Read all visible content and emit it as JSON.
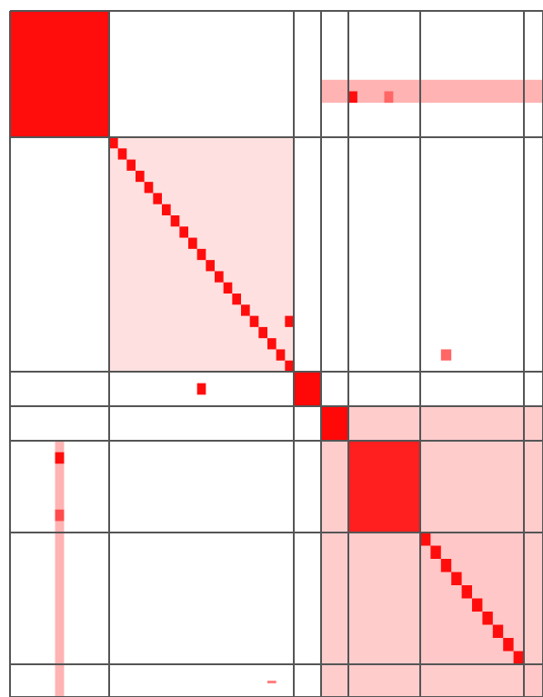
{
  "chart_data": {
    "type": "heatmap",
    "title": "",
    "xlabel": "",
    "ylabel": "",
    "colormap": [
      "#ffffff",
      "#ff0000"
    ],
    "grid_line_color": "#555555",
    "block_boundaries": [
      0,
      11,
      32,
      35,
      38,
      46,
      56,
      68,
      72
    ],
    "value_range": [
      0,
      1
    ],
    "blocks": [
      {
        "rows": [
          0,
          11
        ],
        "cols": [
          0,
          11
        ],
        "value": 0.95,
        "kind": "block"
      },
      {
        "rows": [
          11,
          32
        ],
        "cols": [
          11,
          32
        ],
        "value": 0.12,
        "kind": "block-diagonal"
      },
      {
        "rows": [
          32,
          35
        ],
        "cols": [
          32,
          35
        ],
        "value": 0.97,
        "kind": "block"
      },
      {
        "rows": [
          35,
          38
        ],
        "cols": [
          35,
          38
        ],
        "value": 0.97,
        "kind": "block"
      },
      {
        "rows": [
          38,
          46
        ],
        "cols": [
          38,
          46
        ],
        "value": 0.88,
        "kind": "block"
      },
      {
        "rows": [
          46,
          56
        ],
        "cols": [
          46,
          56
        ],
        "value": 0.22,
        "kind": "block-diagonal"
      },
      {
        "rows": [
          56,
          68
        ],
        "cols": [
          56,
          68
        ],
        "value": 0.22,
        "kind": "block"
      },
      {
        "rows": [
          68,
          72
        ],
        "cols": [
          68,
          72
        ],
        "value": 0.95,
        "kind": "block"
      },
      {
        "rows": [
          35,
          72
        ],
        "cols": [
          35,
          72
        ],
        "value": 0.2,
        "kind": "off-diagonal"
      },
      {
        "rows": [
          6,
          8
        ],
        "cols": [
          35,
          72
        ],
        "value": 0.3,
        "kind": "stripe"
      },
      {
        "rows": [
          38,
          72
        ],
        "cols": [
          5,
          6
        ],
        "value": 0.3,
        "kind": "stripe"
      },
      {
        "rows": [
          35,
          72
        ],
        "cols": [
          0,
          3
        ],
        "value": 0,
        "kind": "empty"
      }
    ],
    "cells": [
      {
        "row": 39,
        "col": 5,
        "value": 0.95
      },
      {
        "row": 44,
        "col": 5,
        "value": 0.7
      },
      {
        "row": 7,
        "col": 38,
        "value": 0.95
      },
      {
        "row": 7,
        "col": 42,
        "value": 0.6
      },
      {
        "row": 33,
        "col": 21,
        "value": 0.95
      },
      {
        "row": 27,
        "col": 31,
        "value": 0.95
      },
      {
        "row": 30,
        "col": 48,
        "value": 0.6
      },
      {
        "row": 62,
        "col": 29,
        "value": 0.5
      }
    ]
  }
}
